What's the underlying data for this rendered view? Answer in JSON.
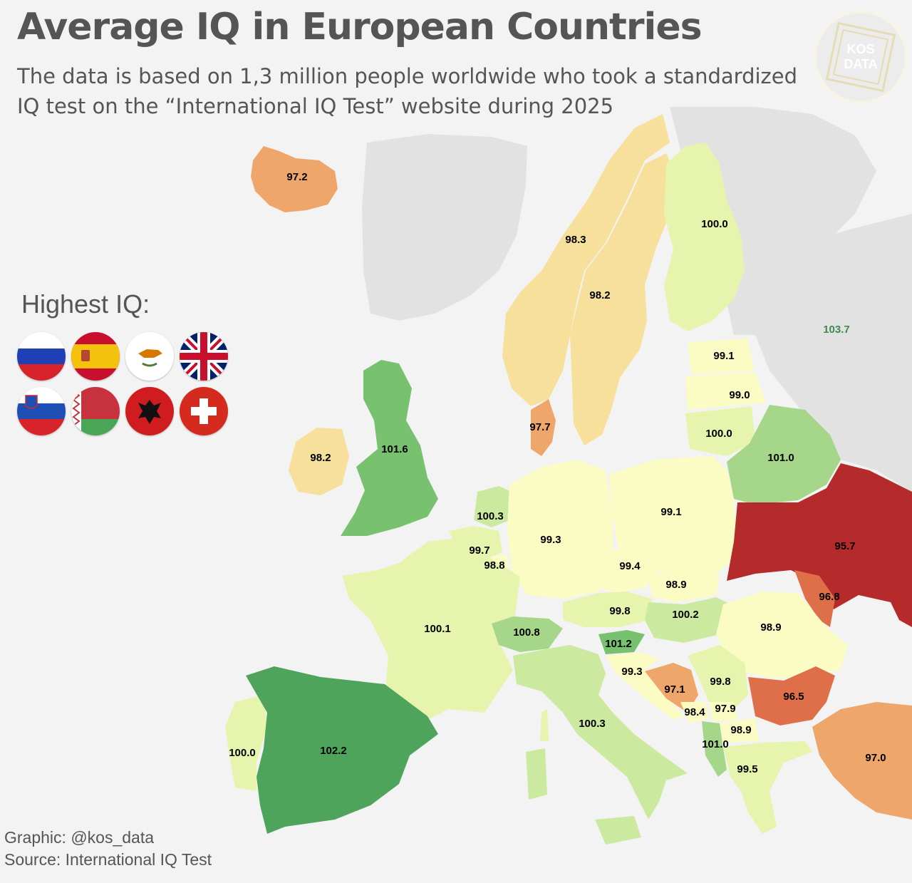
{
  "header": {
    "title": "Average IQ in European Countries",
    "subtitle": "The data is based on 1,3 million people worldwide who took a standardized IQ test on the “International IQ Test” website during 2025"
  },
  "highest": {
    "title": "Highest IQ:",
    "flags": [
      {
        "icon": "russia-flag-icon"
      },
      {
        "icon": "spain-flag-icon"
      },
      {
        "icon": "cyprus-flag-icon"
      },
      {
        "icon": "united-kingdom-flag-icon"
      },
      {
        "icon": "slovenia-flag-icon"
      },
      {
        "icon": "belarus-flag-icon"
      },
      {
        "icon": "albania-flag-icon"
      },
      {
        "icon": "switzerland-flag-icon"
      }
    ]
  },
  "logo": {
    "line1": "KOS",
    "line2": "DATA"
  },
  "credits": {
    "graphic": "Graphic: @kos_data",
    "source": "Source: International IQ Test"
  },
  "colors": {
    "background": "#f3f3f3",
    "no_data": "#e2e2e2",
    "scale": [
      "#b52b2b",
      "#df6f48",
      "#eea66b",
      "#f6e09c",
      "#fbfbc4",
      "#e6f4ae",
      "#cce9a0",
      "#a6d68a",
      "#78c16f",
      "#4ea45a"
    ]
  },
  "countries": [
    {
      "name": "iceland",
      "value": "97.2"
    },
    {
      "name": "norway",
      "value": "98.3"
    },
    {
      "name": "sweden",
      "value": "98.2"
    },
    {
      "name": "finland",
      "value": "100.0"
    },
    {
      "name": "russia",
      "value": "103.7"
    },
    {
      "name": "estonia",
      "value": "99.1"
    },
    {
      "name": "latvia",
      "value": "99.0"
    },
    {
      "name": "lithuania",
      "value": "100.0"
    },
    {
      "name": "belarus",
      "value": "101.0"
    },
    {
      "name": "denmark",
      "value": "97.7"
    },
    {
      "name": "ireland",
      "value": "98.2"
    },
    {
      "name": "united-kingdom",
      "value": "101.6"
    },
    {
      "name": "netherlands",
      "value": "100.3"
    },
    {
      "name": "belgium",
      "value": "99.7"
    },
    {
      "name": "luxembourg",
      "value": "98.8"
    },
    {
      "name": "germany",
      "value": "99.3"
    },
    {
      "name": "poland",
      "value": "99.1"
    },
    {
      "name": "ukraine",
      "value": "95.7"
    },
    {
      "name": "czechia",
      "value": "99.4"
    },
    {
      "name": "slovakia",
      "value": "98.9"
    },
    {
      "name": "moldova",
      "value": "96.8"
    },
    {
      "name": "austria",
      "value": "99.8"
    },
    {
      "name": "hungary",
      "value": "100.2"
    },
    {
      "name": "romania",
      "value": "98.9"
    },
    {
      "name": "france",
      "value": "100.1"
    },
    {
      "name": "switzerland",
      "value": "100.8"
    },
    {
      "name": "slovenia",
      "value": "101.2"
    },
    {
      "name": "croatia",
      "value": "99.3"
    },
    {
      "name": "bosnia",
      "value": "97.1"
    },
    {
      "name": "serbia",
      "value": "99.8"
    },
    {
      "name": "bulgaria",
      "value": "96.5"
    },
    {
      "name": "montenegro",
      "value": "98.4"
    },
    {
      "name": "kosovo",
      "value": "97.9"
    },
    {
      "name": "north-macedonia",
      "value": "98.9"
    },
    {
      "name": "albania",
      "value": "101.0"
    },
    {
      "name": "greece",
      "value": "99.5"
    },
    {
      "name": "turkey",
      "value": "97.0"
    },
    {
      "name": "italy",
      "value": "100.3"
    },
    {
      "name": "portugal",
      "value": "100.0"
    },
    {
      "name": "spain",
      "value": "102.2"
    }
  ]
}
